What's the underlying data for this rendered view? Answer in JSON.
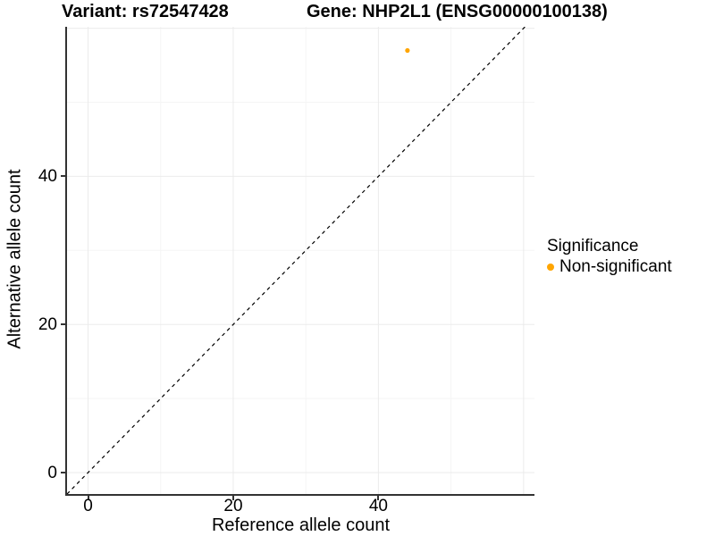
{
  "chart_data": {
    "type": "scatter",
    "title_left": "Variant: rs72547428",
    "title_right": "Gene: NHP2L1 (ENSG00000100138)",
    "xlabel": "Reference allele count",
    "ylabel": "Alternative allele count",
    "xlim": [
      -2.9,
      61.5
    ],
    "ylim": [
      -2.9,
      60.2
    ],
    "x_ticks": [
      0,
      20,
      40
    ],
    "y_ticks": [
      0,
      20,
      40
    ],
    "x_grid_major": [
      0,
      20,
      40,
      60
    ],
    "x_grid_minor": [
      10,
      30,
      50
    ],
    "y_grid_major": [
      0,
      20,
      40,
      60
    ],
    "y_grid_minor": [
      10,
      30,
      50
    ],
    "identity_line": {
      "style": "dashed",
      "x1": -2.9,
      "y1": -2.9,
      "x2": 61.5,
      "y2": 61.5,
      "color": "#000000"
    },
    "series": [
      {
        "name": "Non-significant",
        "color": "#FFA500",
        "points": [
          {
            "x": 44,
            "y": 57
          }
        ]
      }
    ],
    "legend": {
      "title": "Significance",
      "position": "right",
      "items": [
        {
          "label": "Non-significant",
          "color": "#FFA500"
        }
      ]
    },
    "grid": true
  },
  "colors": {
    "background": "#FFFFFF",
    "axis_line": "#333333",
    "grid_major": "#EBEBEB",
    "grid_minor": "#F5F5F5",
    "tick_mark": "#333333",
    "text": "#000000"
  }
}
